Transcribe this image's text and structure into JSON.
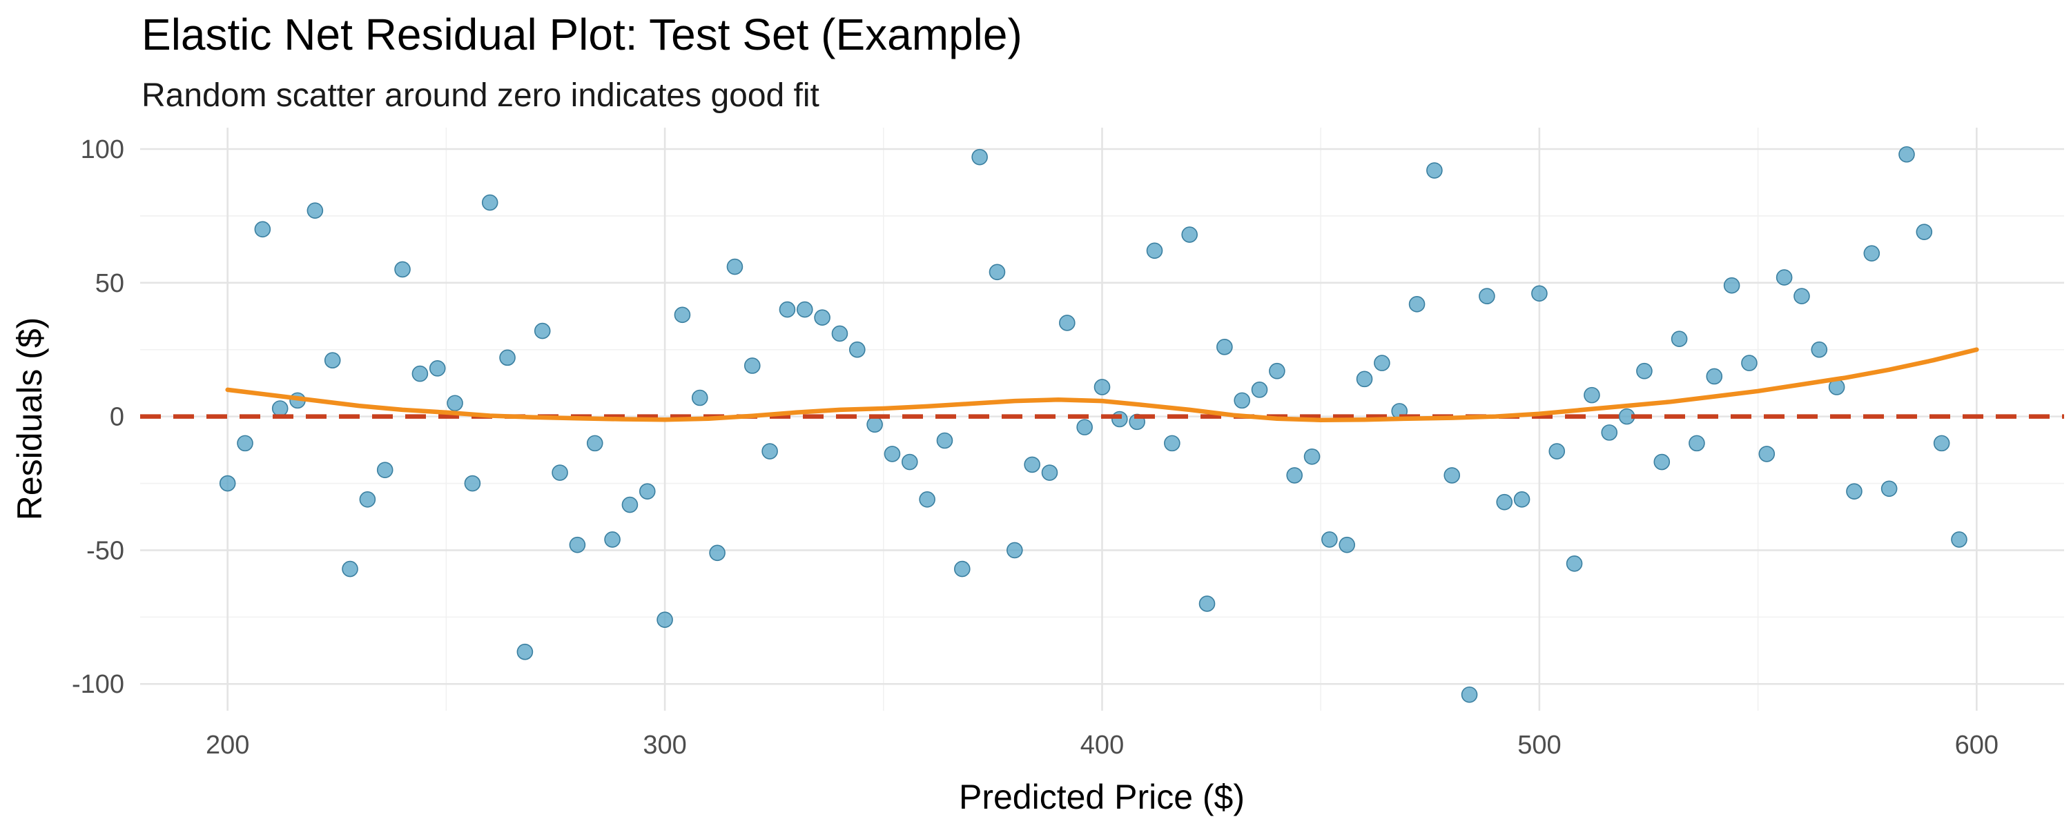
{
  "chart_data": {
    "type": "scatter",
    "title": "Elastic Net Residual Plot: Test Set (Example)",
    "subtitle": "Random scatter around zero indicates good fit",
    "xlabel": "Predicted Price ($)",
    "ylabel": "Residuals ($)",
    "xlim": [
      180,
      620
    ],
    "ylim": [
      -110,
      108
    ],
    "x_ticks": [
      200,
      300,
      400,
      500,
      600
    ],
    "y_ticks": [
      -100,
      -50,
      0,
      50,
      100
    ],
    "grid": true,
    "legend": "none",
    "colors": {
      "points": "#5aa5c8",
      "point_outline": "#3a7fa0",
      "zero_line": "#c8401e",
      "smooth_line": "#f28e1c",
      "grid": "#e4e4e4"
    },
    "reference_line": {
      "y": 0,
      "style": "dashed"
    },
    "series": [
      {
        "kind": "points",
        "points": [
          [
            200,
            -25
          ],
          [
            204,
            -10
          ],
          [
            208,
            70
          ],
          [
            212,
            3
          ],
          [
            216,
            6
          ],
          [
            220,
            77
          ],
          [
            224,
            21
          ],
          [
            228,
            -57
          ],
          [
            232,
            -31
          ],
          [
            236,
            -20
          ],
          [
            240,
            55
          ],
          [
            244,
            16
          ],
          [
            248,
            18
          ],
          [
            252,
            5
          ],
          [
            256,
            -25
          ],
          [
            260,
            80
          ],
          [
            264,
            22
          ],
          [
            268,
            -88
          ],
          [
            272,
            32
          ],
          [
            276,
            -21
          ],
          [
            280,
            -48
          ],
          [
            284,
            -10
          ],
          [
            288,
            -46
          ],
          [
            292,
            -33
          ],
          [
            296,
            -28
          ],
          [
            300,
            -76
          ],
          [
            304,
            38
          ],
          [
            308,
            7
          ],
          [
            312,
            -51
          ],
          [
            316,
            56
          ],
          [
            320,
            19
          ],
          [
            324,
            -13
          ],
          [
            328,
            40
          ],
          [
            332,
            40
          ],
          [
            336,
            37
          ],
          [
            340,
            31
          ],
          [
            344,
            25
          ],
          [
            348,
            -3
          ],
          [
            352,
            -14
          ],
          [
            356,
            -17
          ],
          [
            360,
            -31
          ],
          [
            364,
            -9
          ],
          [
            368,
            -57
          ],
          [
            372,
            97
          ],
          [
            376,
            54
          ],
          [
            380,
            -50
          ],
          [
            384,
            -18
          ],
          [
            388,
            -21
          ],
          [
            392,
            35
          ],
          [
            396,
            -4
          ],
          [
            400,
            11
          ],
          [
            404,
            -1
          ],
          [
            408,
            -2
          ],
          [
            412,
            62
          ],
          [
            416,
            -10
          ],
          [
            420,
            68
          ],
          [
            424,
            -70
          ],
          [
            428,
            26
          ],
          [
            432,
            6
          ],
          [
            436,
            10
          ],
          [
            440,
            17
          ],
          [
            444,
            -22
          ],
          [
            448,
            -15
          ],
          [
            452,
            -46
          ],
          [
            456,
            -48
          ],
          [
            460,
            14
          ],
          [
            464,
            20
          ],
          [
            468,
            2
          ],
          [
            472,
            42
          ],
          [
            476,
            92
          ],
          [
            480,
            -22
          ],
          [
            484,
            -104
          ],
          [
            488,
            45
          ],
          [
            492,
            -32
          ],
          [
            496,
            -31
          ],
          [
            500,
            46
          ],
          [
            504,
            -13
          ],
          [
            508,
            -55
          ],
          [
            512,
            8
          ],
          [
            516,
            -6
          ],
          [
            520,
            0
          ],
          [
            524,
            17
          ],
          [
            528,
            -17
          ],
          [
            532,
            29
          ],
          [
            536,
            -10
          ],
          [
            540,
            15
          ],
          [
            544,
            49
          ],
          [
            548,
            20
          ],
          [
            552,
            -14
          ],
          [
            556,
            52
          ],
          [
            560,
            45
          ],
          [
            564,
            25
          ],
          [
            568,
            11
          ],
          [
            572,
            -28
          ],
          [
            576,
            61
          ],
          [
            580,
            -27
          ],
          [
            584,
            98
          ],
          [
            588,
            69
          ],
          [
            592,
            -10
          ],
          [
            596,
            -46
          ]
        ]
      },
      {
        "kind": "smooth_line",
        "points": [
          [
            200,
            10
          ],
          [
            210,
            8
          ],
          [
            220,
            6
          ],
          [
            230,
            4
          ],
          [
            240,
            2.5
          ],
          [
            250,
            1.5
          ],
          [
            260,
            0.3
          ],
          [
            270,
            -0.3
          ],
          [
            280,
            -0.7
          ],
          [
            290,
            -1
          ],
          [
            300,
            -1.2
          ],
          [
            310,
            -0.8
          ],
          [
            320,
            0.2
          ],
          [
            330,
            1.5
          ],
          [
            340,
            2.5
          ],
          [
            350,
            3
          ],
          [
            360,
            3.8
          ],
          [
            370,
            4.8
          ],
          [
            380,
            5.8
          ],
          [
            390,
            6.3
          ],
          [
            400,
            5.8
          ],
          [
            410,
            4.2
          ],
          [
            420,
            2.5
          ],
          [
            430,
            0.5
          ],
          [
            440,
            -0.8
          ],
          [
            450,
            -1.3
          ],
          [
            460,
            -1.2
          ],
          [
            470,
            -0.8
          ],
          [
            480,
            -0.5
          ],
          [
            490,
            0
          ],
          [
            500,
            1
          ],
          [
            510,
            2.5
          ],
          [
            520,
            4
          ],
          [
            530,
            5.5
          ],
          [
            540,
            7.5
          ],
          [
            550,
            9.5
          ],
          [
            560,
            12
          ],
          [
            570,
            14.5
          ],
          [
            580,
            17.5
          ],
          [
            590,
            21
          ],
          [
            600,
            25
          ]
        ]
      }
    ]
  }
}
